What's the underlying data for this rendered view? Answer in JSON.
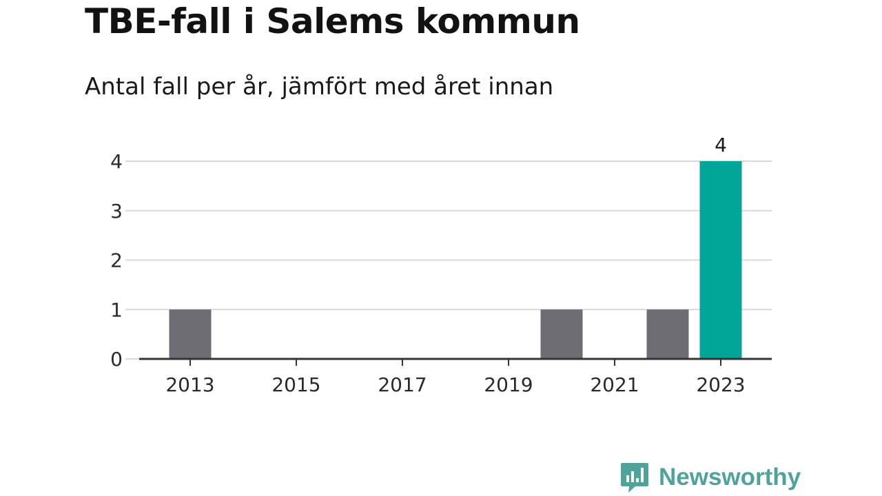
{
  "chart_data": {
    "type": "bar",
    "title": "TBE-fall i Salems kommun",
    "subtitle": "Antal fall per år, jämfört med året innan",
    "x": [
      2013,
      2014,
      2015,
      2016,
      2017,
      2018,
      2019,
      2020,
      2021,
      2022,
      2023
    ],
    "values": [
      1,
      0,
      0,
      0,
      0,
      0,
      0,
      1,
      0,
      1,
      4
    ],
    "x_tick_labels": [
      "2013",
      "2015",
      "2017",
      "2019",
      "2021",
      "2023"
    ],
    "y_ticks": [
      0,
      1,
      2,
      3,
      4
    ],
    "ylim": [
      0,
      4
    ],
    "grid": true,
    "highlight": {
      "year": 2023,
      "label": "4"
    },
    "colors": {
      "bar": "#6e6d74",
      "highlight": "#00a598",
      "grid": "#d9d9d9",
      "axis": "#333333"
    }
  },
  "brand": {
    "name": "Newsworthy",
    "logo_icon": "newsworthy-bar-chart-bubble-icon",
    "color": "#4fa39b"
  }
}
